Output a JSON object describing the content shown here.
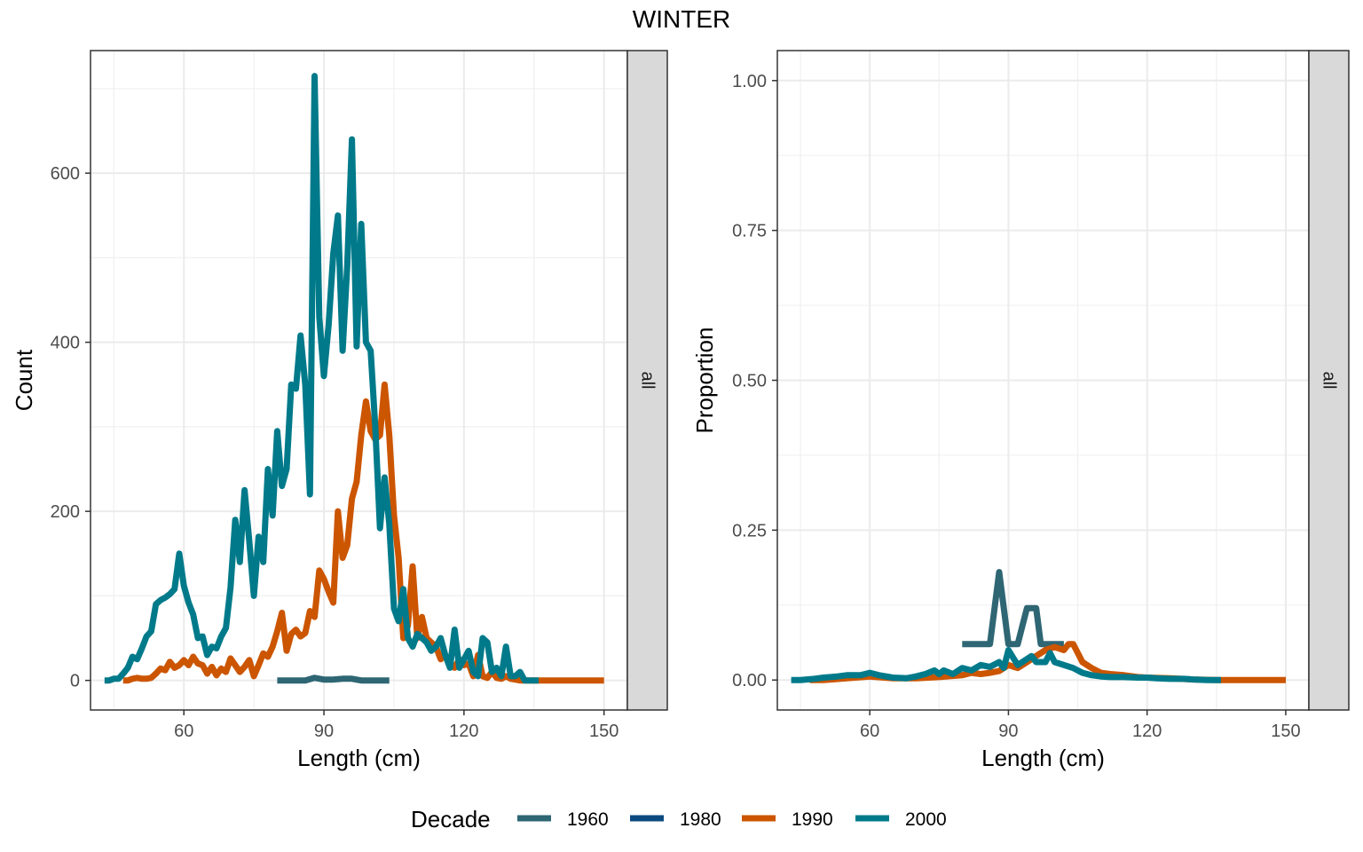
{
  "chart": {
    "title": "WINTER",
    "legend": {
      "title": "Decade",
      "position": "bottom",
      "entries": [
        {
          "label": "1960",
          "color": "#2e6674"
        },
        {
          "label": "1980",
          "color": "#0b4a80"
        },
        {
          "label": "1990",
          "color": "#cc5500"
        },
        {
          "label": "2000",
          "color": "#007a8a"
        }
      ]
    }
  },
  "chart_data": [
    {
      "type": "line",
      "panel": "left",
      "strip": "all",
      "xlabel": "Length (cm)",
      "ylabel": "Count",
      "xlim": [
        40,
        155
      ],
      "ylim": [
        -35,
        745
      ],
      "xticks": [
        60,
        90,
        120,
        150
      ],
      "yticks": [
        0,
        200,
        400,
        600
      ],
      "xtick_labels": [
        "60",
        "90",
        "120",
        "150"
      ],
      "ytick_labels": [
        "0",
        "200",
        "400",
        "600"
      ],
      "grid": true,
      "series": [
        {
          "name": "1960",
          "color": "#2e6674",
          "x": [
            80,
            82,
            84,
            86,
            88,
            90,
            92,
            94,
            96,
            98,
            100,
            102,
            104
          ],
          "y": [
            0,
            0,
            0,
            0,
            3,
            1,
            1,
            2,
            2,
            0,
            0,
            0,
            0
          ]
        },
        {
          "name": "1990",
          "color": "#cc5500",
          "x": [
            47,
            48,
            49,
            50,
            51,
            52,
            53,
            54,
            55,
            56,
            57,
            58,
            59,
            60,
            61,
            62,
            63,
            64,
            65,
            66,
            67,
            68,
            69,
            70,
            71,
            72,
            73,
            74,
            75,
            76,
            77,
            78,
            79,
            80,
            81,
            82,
            83,
            84,
            85,
            86,
            87,
            88,
            89,
            90,
            91,
            92,
            93,
            94,
            95,
            96,
            97,
            98,
            99,
            100,
            101,
            102,
            103,
            104,
            105,
            106,
            107,
            108,
            109,
            110,
            111,
            112,
            113,
            114,
            115,
            116,
            117,
            118,
            119,
            120,
            121,
            122,
            123,
            124,
            125,
            126,
            127,
            128,
            129,
            130,
            131,
            132,
            133,
            135,
            140,
            145,
            150
          ],
          "y": [
            0,
            0,
            2,
            3,
            2,
            2,
            3,
            8,
            14,
            12,
            22,
            15,
            18,
            24,
            18,
            28,
            20,
            18,
            8,
            16,
            6,
            14,
            10,
            26,
            18,
            10,
            16,
            24,
            5,
            18,
            32,
            28,
            40,
            58,
            80,
            35,
            55,
            60,
            52,
            56,
            82,
            75,
            130,
            120,
            105,
            92,
            200,
            145,
            160,
            215,
            235,
            290,
            330,
            295,
            285,
            290,
            350,
            290,
            195,
            145,
            50,
            65,
            135,
            50,
            75,
            50,
            45,
            40,
            25,
            30,
            20,
            15,
            25,
            18,
            20,
            5,
            30,
            5,
            3,
            10,
            3,
            2,
            5,
            2,
            1,
            0,
            0,
            0,
            0,
            0,
            0
          ]
        },
        {
          "name": "2000",
          "color": "#007a8a",
          "x": [
            43,
            44,
            45,
            46,
            47,
            48,
            49,
            50,
            51,
            52,
            53,
            54,
            55,
            56,
            57,
            58,
            59,
            60,
            61,
            62,
            63,
            64,
            65,
            66,
            67,
            68,
            69,
            70,
            71,
            72,
            73,
            74,
            75,
            76,
            77,
            78,
            79,
            80,
            81,
            82,
            83,
            84,
            85,
            86,
            87,
            88,
            89,
            90,
            91,
            92,
            93,
            94,
            95,
            96,
            97,
            98,
            99,
            100,
            101,
            102,
            103,
            104,
            105,
            106,
            107,
            108,
            109,
            110,
            111,
            112,
            113,
            114,
            115,
            116,
            117,
            118,
            119,
            120,
            121,
            122,
            123,
            124,
            125,
            126,
            127,
            128,
            129,
            130,
            131,
            132,
            133,
            134,
            135,
            136
          ],
          "y": [
            0,
            0,
            2,
            2,
            8,
            15,
            28,
            25,
            38,
            52,
            58,
            90,
            95,
            98,
            102,
            108,
            150,
            112,
            92,
            78,
            50,
            52,
            30,
            40,
            38,
            52,
            62,
            110,
            190,
            140,
            225,
            165,
            100,
            170,
            140,
            250,
            195,
            295,
            230,
            250,
            350,
            345,
            408,
            350,
            220,
            715,
            430,
            360,
            420,
            505,
            550,
            390,
            490,
            640,
            395,
            540,
            400,
            390,
            300,
            180,
            240,
            185,
            85,
            70,
            108,
            50,
            40,
            55,
            50,
            45,
            35,
            40,
            50,
            30,
            15,
            60,
            15,
            25,
            35,
            10,
            5,
            50,
            45,
            10,
            15,
            5,
            40,
            5,
            5,
            10,
            0,
            0,
            0,
            0
          ]
        }
      ]
    },
    {
      "type": "line",
      "panel": "right",
      "strip": "all",
      "xlabel": "Length (cm)",
      "ylabel": "Proportion",
      "xlim": [
        40,
        155
      ],
      "ylim": [
        -0.05,
        1.05
      ],
      "xticks": [
        60,
        90,
        120,
        150
      ],
      "yticks": [
        0,
        0.25,
        0.5,
        0.75,
        1.0
      ],
      "xtick_labels": [
        "60",
        "90",
        "120",
        "150"
      ],
      "ytick_labels": [
        "0.00",
        "0.25",
        "0.50",
        "0.75",
        "1.00"
      ],
      "grid": true,
      "series": [
        {
          "name": "1960",
          "color": "#2e6674",
          "x": [
            80,
            82,
            84,
            86,
            87,
            88,
            89,
            90,
            91,
            92,
            93,
            94,
            95,
            96,
            97,
            98,
            99,
            100,
            101,
            102
          ],
          "y": [
            0.06,
            0.06,
            0.06,
            0.06,
            0.12,
            0.18,
            0.12,
            0.06,
            0.06,
            0.06,
            0.09,
            0.12,
            0.12,
            0.12,
            0.06,
            0.06,
            0.06,
            0.06,
            0.06,
            0.06
          ]
        },
        {
          "name": "1990",
          "color": "#cc5500",
          "x": [
            47,
            50,
            55,
            60,
            65,
            70,
            75,
            80,
            82,
            84,
            86,
            88,
            90,
            92,
            94,
            96,
            98,
            100,
            102,
            103,
            104,
            105,
            106,
            108,
            110,
            112,
            115,
            118,
            120,
            125,
            130,
            135,
            140,
            145,
            150
          ],
          "y": [
            0,
            0,
            0.003,
            0.006,
            0.003,
            0.003,
            0.005,
            0.008,
            0.012,
            0.01,
            0.012,
            0.015,
            0.025,
            0.02,
            0.03,
            0.04,
            0.05,
            0.055,
            0.05,
            0.06,
            0.06,
            0.045,
            0.03,
            0.02,
            0.012,
            0.01,
            0.008,
            0.005,
            0.004,
            0.003,
            0.001,
            0,
            0,
            0,
            0
          ]
        },
        {
          "name": "2000",
          "color": "#007a8a",
          "x": [
            43,
            45,
            48,
            50,
            53,
            55,
            58,
            60,
            62,
            65,
            68,
            70,
            72,
            74,
            75,
            76,
            78,
            80,
            82,
            84,
            86,
            88,
            89,
            90,
            92,
            94,
            95,
            96,
            98,
            99,
            100,
            102,
            104,
            106,
            108,
            110,
            112,
            115,
            118,
            120,
            122,
            125,
            128,
            130,
            133,
            136
          ],
          "y": [
            0,
            0,
            0.002,
            0.004,
            0.006,
            0.008,
            0.008,
            0.012,
            0.008,
            0.004,
            0.003,
            0.006,
            0.01,
            0.016,
            0.01,
            0.016,
            0.01,
            0.02,
            0.016,
            0.025,
            0.022,
            0.03,
            0.02,
            0.05,
            0.025,
            0.035,
            0.04,
            0.03,
            0.03,
            0.045,
            0.03,
            0.025,
            0.02,
            0.012,
            0.008,
            0.006,
            0.005,
            0.005,
            0.004,
            0.004,
            0.003,
            0.002,
            0.002,
            0.001,
            0,
            0
          ]
        }
      ]
    }
  ]
}
